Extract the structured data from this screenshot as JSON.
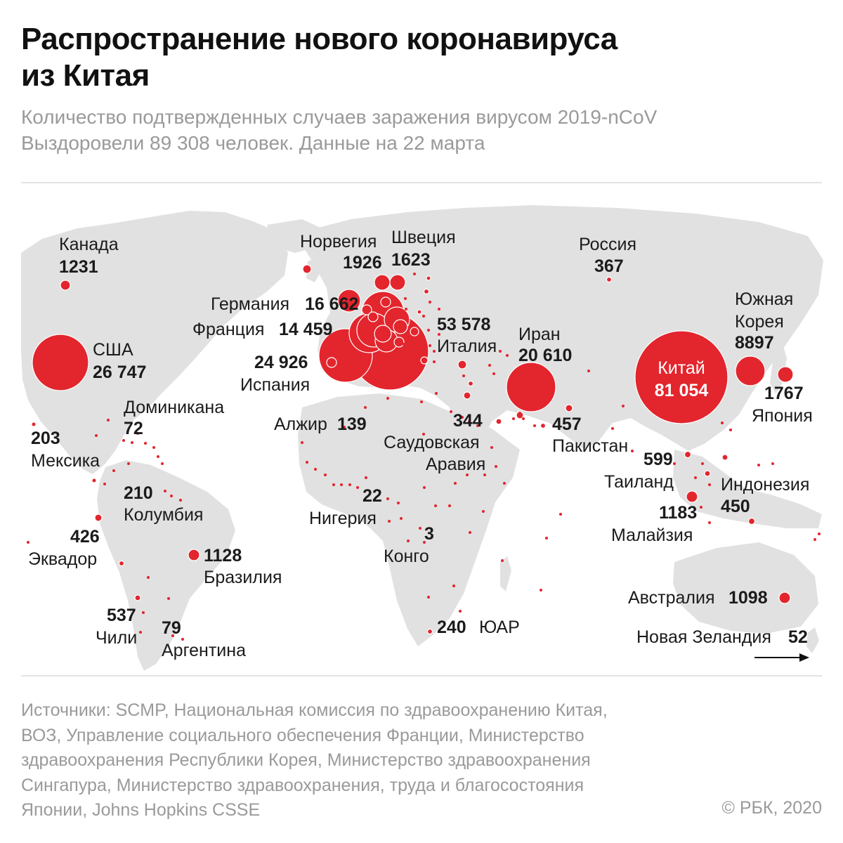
{
  "header": {
    "title_line1": "Распространение нового коронавируса",
    "title_line2": "из Китая",
    "subtitle_line1": "Количество подтвержденных случаев заражения вирусом 2019-nCoV",
    "subtitle_line2": "Выздоровели 89 308 человек. Данные на 22 марта"
  },
  "map": {
    "bubble_color": "#e3252d",
    "land_color": "#e1e1e1",
    "labels": {
      "canada": {
        "name": "Канада",
        "value": "1231"
      },
      "usa": {
        "name": "США",
        "value": "26 747"
      },
      "mexico": {
        "name": "Мексика",
        "value": "203"
      },
      "dominicana": {
        "name": "Доминикана",
        "value": "72"
      },
      "colombia": {
        "name": "Колумбия",
        "value": "210"
      },
      "ecuador": {
        "name": "Эквадор",
        "value": "426"
      },
      "brazil": {
        "name": "Бразилия",
        "value": "1128"
      },
      "chile": {
        "name": "Чили",
        "value": "537"
      },
      "argentina": {
        "name": "Аргентина",
        "value": "79"
      },
      "norway": {
        "name": "Норвегия",
        "value": "1926"
      },
      "sweden": {
        "name": "Швеция",
        "value": "1623"
      },
      "germany": {
        "name": "Германия",
        "value": "16 662"
      },
      "france": {
        "name": "Франция",
        "value": "14 459"
      },
      "spain": {
        "name": "Испания",
        "value": "24 926"
      },
      "italy": {
        "name": "Италия",
        "value": "53 578"
      },
      "algeria": {
        "name": "Алжир",
        "value": "139"
      },
      "saudi": {
        "name_line1": "Саудовская",
        "name_line2": "Аравия",
        "value": "344"
      },
      "nigeria": {
        "name": "Нигерия",
        "value": "22"
      },
      "congo": {
        "name": "Конго",
        "value": "3"
      },
      "south_africa": {
        "name": "ЮАР",
        "value": "240"
      },
      "russia": {
        "name": "Россия",
        "value": "367"
      },
      "iran": {
        "name": "Иран",
        "value": "20 610"
      },
      "pakistan": {
        "name": "Пакистан",
        "value": "457"
      },
      "china": {
        "name": "Китай",
        "value": "81 054"
      },
      "korea": {
        "name_line1": "Южная",
        "name_line2": "Корея",
        "value": "8897"
      },
      "japan": {
        "name": "Япония",
        "value": "1767"
      },
      "thailand": {
        "name": "Таиланд",
        "value": "599"
      },
      "malaysia": {
        "name": "Малайзия",
        "value": "1183"
      },
      "indonesia": {
        "name": "Индонезия",
        "value": "450"
      },
      "australia": {
        "name": "Австралия",
        "value": "1098"
      },
      "new_zealand": {
        "name": "Новая Зеландия",
        "value": "52"
      }
    }
  },
  "footer": {
    "sources_line1": "Источники: SCMP, Национальная комиссия по здравоохранению Китая,",
    "sources_line2": "ВОЗ, Управление социального обеспечения Франции, Министерство",
    "sources_line3": "здравоохранения Республики Корея, Министерство здравоохранения",
    "sources_line4": "Сингапура, Министерство здравоохранения, труда и благосостояния",
    "sources_line5": "Японии, Johns Hopkins CSSE",
    "credit": "© РБК, 2020"
  }
}
